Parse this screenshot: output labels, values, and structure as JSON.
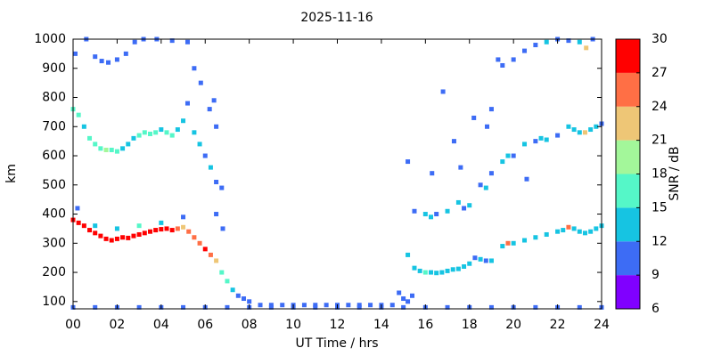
{
  "chart_data": {
    "type": "scatter",
    "title": "2025-11-16",
    "xlabel": "UT Time / hrs",
    "ylabel": "km",
    "xlim": [
      0,
      24
    ],
    "ylim": [
      75,
      1000
    ],
    "xticks": [
      {
        "value": 0,
        "label": "00"
      },
      {
        "value": 2,
        "label": "02"
      },
      {
        "value": 4,
        "label": "04"
      },
      {
        "value": 6,
        "label": "06"
      },
      {
        "value": 8,
        "label": "08"
      },
      {
        "value": 10,
        "label": "10"
      },
      {
        "value": 12,
        "label": "12"
      },
      {
        "value": 14,
        "label": "14"
      },
      {
        "value": 16,
        "label": "16"
      },
      {
        "value": 18,
        "label": "18"
      },
      {
        "value": 20,
        "label": "20"
      },
      {
        "value": 22,
        "label": "22"
      },
      {
        "value": 24,
        "label": "24"
      }
    ],
    "yticks": [
      100,
      200,
      300,
      400,
      500,
      600,
      700,
      800,
      900,
      1000
    ],
    "colorbar": {
      "label": "SNR / dB",
      "clim": [
        6,
        30
      ],
      "ticks": [
        6,
        9,
        12,
        15,
        18,
        21,
        24,
        27,
        30
      ],
      "colors": [
        "#8000ff",
        "#3d6cf5",
        "#16c4e2",
        "#55f7c8",
        "#a3f79a",
        "#eec676",
        "#ff6f45",
        "#ff0000"
      ]
    },
    "x": [
      0,
      0.25,
      0.5,
      0.75,
      1,
      1.25,
      1.5,
      1.75,
      2,
      2.25,
      2.5,
      2.75,
      3,
      3.25,
      3.5,
      3.75,
      4,
      4.25,
      4.5,
      4.75,
      5,
      5.25,
      5.5,
      5.75,
      6,
      6.25,
      6.5,
      6.75,
      7,
      7.25,
      7.5,
      7.75,
      8,
      0.2,
      1,
      2,
      3,
      4,
      5,
      6.5,
      6.8,
      0,
      0.25,
      0.5,
      0.75,
      1,
      1.25,
      1.5,
      1.75,
      2,
      2.25,
      2.5,
      2.75,
      3,
      3.25,
      3.5,
      3.75,
      4,
      4.25,
      4.5,
      4.75,
      5,
      5.2,
      5.5,
      5.75,
      6,
      6.25,
      6.5,
      6.75,
      0.1,
      0.6,
      1,
      1.3,
      1.6,
      2,
      2.4,
      2.8,
      3.2,
      3.8,
      4.5,
      5.2,
      5.5,
      5.8,
      6.2,
      6.5,
      6.4,
      0,
      1,
      2,
      3,
      4,
      5,
      6,
      7,
      8,
      9,
      10,
      11,
      12,
      13,
      14,
      15,
      16,
      17,
      18,
      19,
      20,
      21,
      22,
      23,
      24,
      8.5,
      9,
      9.5,
      10,
      10.5,
      11,
      11.5,
      12,
      12.5,
      13,
      13.5,
      14,
      14.5,
      14.8,
      15,
      15.2,
      15.4,
      15.2,
      15.5,
      15.75,
      16,
      16.25,
      16.5,
      16.75,
      17,
      17.25,
      17.5,
      17.75,
      18,
      18.25,
      18.5,
      18.75,
      19,
      19.5,
      19.75,
      20,
      20.5,
      21,
      21.5,
      22,
      22.25,
      22.5,
      22.75,
      23,
      23.25,
      23.5,
      23.75,
      24,
      15.5,
      16,
      16.25,
      16.5,
      17,
      17.5,
      17.75,
      18,
      18.5,
      18.75,
      19,
      19.5,
      19.75,
      20,
      20.5,
      21,
      21.25,
      21.5,
      22,
      22.5,
      22.75,
      23,
      23.25,
      23.5,
      23.75,
      24,
      15.2,
      16.3,
      16.8,
      17.6,
      18.2,
      18.8,
      19,
      20.6,
      19.3,
      17.3,
      19.5,
      20,
      20.5,
      21,
      21.5,
      22,
      22.5,
      23,
      23.3,
      23.6
    ],
    "y": [
      380,
      370,
      360,
      345,
      335,
      325,
      315,
      310,
      315,
      320,
      318,
      325,
      330,
      335,
      340,
      345,
      348,
      350,
      345,
      350,
      355,
      340,
      320,
      300,
      280,
      260,
      240,
      200,
      170,
      140,
      120,
      110,
      100,
      420,
      360,
      350,
      360,
      370,
      390,
      400,
      350,
      760,
      740,
      700,
      660,
      640,
      625,
      620,
      620,
      615,
      625,
      640,
      660,
      670,
      680,
      675,
      680,
      690,
      680,
      670,
      690,
      720,
      780,
      680,
      640,
      600,
      560,
      510,
      490,
      950,
      1000,
      940,
      925,
      920,
      930,
      950,
      990,
      1000,
      1000,
      995,
      990,
      900,
      850,
      760,
      700,
      790,
      80,
      80,
      80,
      80,
      80,
      80,
      80,
      80,
      80,
      80,
      80,
      80,
      80,
      80,
      80,
      80,
      80,
      80,
      80,
      80,
      80,
      80,
      80,
      80,
      80,
      88,
      88,
      88,
      88,
      88,
      88,
      88,
      88,
      88,
      88,
      88,
      88,
      88,
      130,
      110,
      100,
      120,
      260,
      215,
      205,
      200,
      200,
      198,
      200,
      205,
      210,
      212,
      220,
      230,
      250,
      245,
      240,
      240,
      290,
      300,
      300,
      310,
      320,
      330,
      340,
      345,
      355,
      350,
      340,
      335,
      340,
      350,
      360,
      410,
      400,
      390,
      400,
      410,
      440,
      420,
      430,
      500,
      490,
      540,
      580,
      600,
      600,
      640,
      650,
      660,
      655,
      670,
      700,
      690,
      680,
      680,
      690,
      700,
      710,
      580,
      540,
      820,
      560,
      730,
      700,
      760,
      520,
      930,
      650,
      910,
      930,
      960,
      980,
      990,
      1000,
      995,
      990,
      970,
      1000
    ],
    "snr": [
      27,
      28,
      29,
      28,
      27,
      29,
      28,
      27,
      29,
      28,
      29,
      30,
      29,
      28,
      29,
      30,
      29,
      28,
      27,
      25,
      22,
      24,
      26,
      25,
      27,
      26,
      22,
      17,
      15,
      12,
      11,
      10,
      10,
      11,
      12,
      14,
      15,
      13,
      11,
      10,
      11,
      16,
      15,
      14,
      15,
      16,
      17,
      18,
      16,
      15,
      13,
      12,
      14,
      15,
      16,
      17,
      15,
      14,
      16,
      15,
      13,
      12,
      11,
      14,
      12,
      11,
      12,
      10,
      11,
      10,
      11,
      10,
      11,
      10,
      11,
      10,
      11,
      10,
      11,
      10,
      11,
      10,
      11,
      10,
      11,
      10,
      10,
      10,
      10,
      10,
      10,
      10,
      10,
      10,
      10,
      10,
      10,
      10,
      10,
      10,
      10,
      10,
      10,
      10,
      10,
      10,
      10,
      10,
      10,
      10,
      10,
      11,
      11,
      11,
      11,
      11,
      11,
      11,
      11,
      11,
      11,
      11,
      11,
      11,
      10,
      11,
      10,
      9,
      13,
      12,
      14,
      15,
      13,
      14,
      12,
      13,
      12,
      14,
      13,
      12,
      11,
      12,
      11,
      12,
      13,
      25,
      14,
      13,
      14,
      12,
      13,
      14,
      25,
      13,
      12,
      14,
      13,
      12,
      13,
      10,
      12,
      13,
      11,
      12,
      14,
      11,
      12,
      11,
      12,
      11,
      12,
      13,
      11,
      12,
      11,
      13,
      12,
      11,
      12,
      14,
      13,
      22,
      14,
      12,
      11,
      10,
      10,
      10,
      10,
      10,
      10,
      10,
      10,
      10,
      10,
      11,
      10,
      11,
      10,
      12,
      10,
      11,
      13,
      23,
      11
    ]
  }
}
